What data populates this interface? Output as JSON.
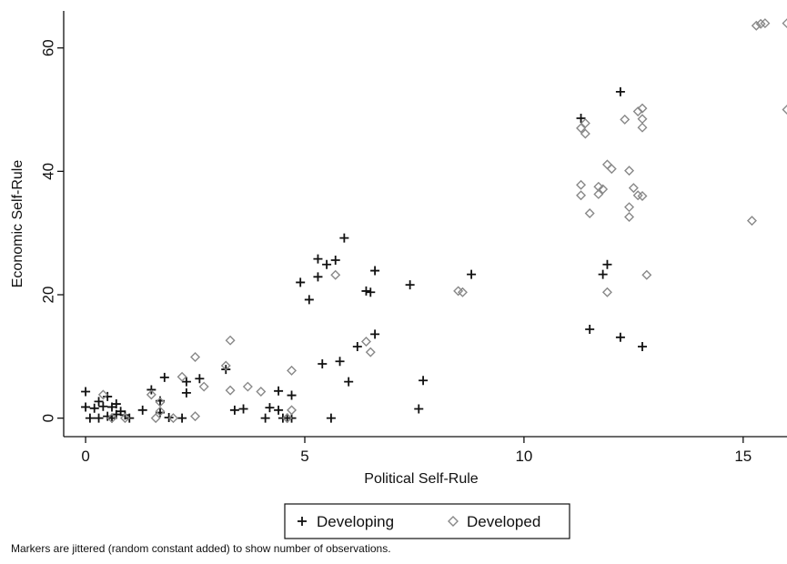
{
  "chart_data": {
    "type": "scatter",
    "xlabel": "Political Self-Rule",
    "ylabel": "Economic Self-Rule",
    "xlim": [
      -0.5,
      16
    ],
    "ylim": [
      -3,
      66
    ],
    "x_ticks": [
      0,
      5,
      10,
      15
    ],
    "y_ticks": [
      0,
      20,
      40,
      60
    ],
    "grid": false,
    "legend_position": "bottom-center",
    "note": "Markers are jittered (random constant added) to show number of observations.",
    "series": [
      {
        "name": "Developing",
        "marker": "plus",
        "color": "#111111",
        "points": [
          [
            0,
            4.3
          ],
          [
            0,
            1.8
          ],
          [
            0.1,
            0
          ],
          [
            0.2,
            1.6
          ],
          [
            0.3,
            2.7
          ],
          [
            0.3,
            0
          ],
          [
            0.4,
            1.9
          ],
          [
            0.5,
            0.3
          ],
          [
            0.5,
            3.5
          ],
          [
            0.6,
            1.8
          ],
          [
            0.6,
            0
          ],
          [
            0.7,
            2.3
          ],
          [
            0.7,
            0.6
          ],
          [
            0.8,
            1.1
          ],
          [
            0.9,
            0.5
          ],
          [
            1,
            0
          ],
          [
            1.3,
            1.3
          ],
          [
            1.5,
            4.6
          ],
          [
            1.7,
            2.8
          ],
          [
            1.7,
            0.9
          ],
          [
            1.8,
            6.6
          ],
          [
            1.9,
            0.1
          ],
          [
            2.2,
            0
          ],
          [
            2.3,
            4.1
          ],
          [
            2.3,
            5.9
          ],
          [
            2.6,
            6.4
          ],
          [
            3.2,
            7.9
          ],
          [
            3.4,
            1.3
          ],
          [
            3.6,
            1.5
          ],
          [
            4.1,
            0
          ],
          [
            4.2,
            1.7
          ],
          [
            4.4,
            4.4
          ],
          [
            4.4,
            1.3
          ],
          [
            4.5,
            0
          ],
          [
            4.6,
            0
          ],
          [
            4.7,
            3.7
          ],
          [
            4.7,
            0
          ],
          [
            4.9,
            22
          ],
          [
            5.1,
            19.2
          ],
          [
            5.3,
            22.9
          ],
          [
            5.3,
            25.8
          ],
          [
            5.4,
            8.8
          ],
          [
            5.5,
            24.9
          ],
          [
            5.6,
            0
          ],
          [
            5.7,
            25.6
          ],
          [
            5.8,
            9.2
          ],
          [
            5.9,
            29.2
          ],
          [
            6,
            5.9
          ],
          [
            6.2,
            11.6
          ],
          [
            6.4,
            20.6
          ],
          [
            6.5,
            20.4
          ],
          [
            6.6,
            23.9
          ],
          [
            6.6,
            13.6
          ],
          [
            7.4,
            21.6
          ],
          [
            7.6,
            1.5
          ],
          [
            7.7,
            6.1
          ],
          [
            8.8,
            23.3
          ],
          [
            11.3,
            48.6
          ],
          [
            11.5,
            14.4
          ],
          [
            11.8,
            23.3
          ],
          [
            11.9,
            24.9
          ],
          [
            12.2,
            52.9
          ],
          [
            12.2,
            13.1
          ],
          [
            12.7,
            11.6
          ]
        ]
      },
      {
        "name": "Developed",
        "marker": "diamond",
        "color": "#888888",
        "points": [
          [
            0.4,
            3.8
          ],
          [
            0.6,
            0
          ],
          [
            0.9,
            0
          ],
          [
            1.5,
            3.8
          ],
          [
            1.6,
            0
          ],
          [
            1.7,
            1.1
          ],
          [
            1.7,
            2.6
          ],
          [
            2.0,
            0
          ],
          [
            2.2,
            6.7
          ],
          [
            2.5,
            9.9
          ],
          [
            2.5,
            0.3
          ],
          [
            2.7,
            5.1
          ],
          [
            3.2,
            8.5
          ],
          [
            3.3,
            4.5
          ],
          [
            3.3,
            12.6
          ],
          [
            3.7,
            5.1
          ],
          [
            4.0,
            4.3
          ],
          [
            4.6,
            0
          ],
          [
            4.7,
            7.7
          ],
          [
            4.7,
            1.3
          ],
          [
            5.7,
            23.2
          ],
          [
            6.4,
            12.4
          ],
          [
            6.5,
            10.7
          ],
          [
            8.5,
            20.6
          ],
          [
            8.6,
            20.4
          ],
          [
            11.3,
            47
          ],
          [
            11.3,
            36.1
          ],
          [
            11.3,
            37.8
          ],
          [
            11.4,
            47.8
          ],
          [
            11.4,
            46.1
          ],
          [
            11.5,
            33.2
          ],
          [
            11.7,
            36.3
          ],
          [
            11.7,
            37.5
          ],
          [
            11.8,
            37.1
          ],
          [
            11.9,
            20.4
          ],
          [
            11.9,
            41.1
          ],
          [
            12.0,
            40.4
          ],
          [
            12.3,
            48.4
          ],
          [
            12.4,
            34.2
          ],
          [
            12.4,
            40.1
          ],
          [
            12.4,
            32.6
          ],
          [
            12.5,
            37.3
          ],
          [
            12.6,
            49.7
          ],
          [
            12.6,
            36.1
          ],
          [
            12.7,
            50.2
          ],
          [
            12.7,
            48.5
          ],
          [
            12.7,
            36
          ],
          [
            12.7,
            47.1
          ],
          [
            12.8,
            23.2
          ],
          [
            15.2,
            32
          ],
          [
            15.3,
            63.6
          ],
          [
            15.4,
            63.9
          ],
          [
            15.5,
            64
          ],
          [
            16.0,
            64
          ],
          [
            16.0,
            50
          ]
        ]
      }
    ]
  }
}
